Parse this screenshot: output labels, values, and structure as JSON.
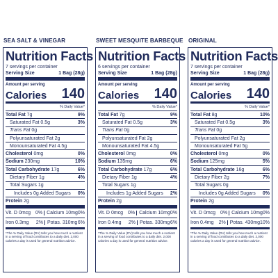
{
  "labels": [
    {
      "flavor": "SEA SALT & VINEGAR",
      "title": "Nutrition Facts",
      "servings": "7 servings per container",
      "serving_size_label": "Serving Size",
      "serving_size": "1 Bag (28g)",
      "amount_per_serving": "Amount per serving",
      "calories_label": "Calories",
      "calories": "140",
      "dv_header": "% Daily Value*",
      "rows": [
        {
          "name": "Total Fat",
          "amount": "7g",
          "dv": "9%"
        },
        {
          "name": "Saturated Fat",
          "amount": "0.5g",
          "dv": "3%"
        },
        {
          "name": "Trans Fat",
          "amount": "0g"
        },
        {
          "name": "Polyunsaturated Fat",
          "amount": "2g"
        },
        {
          "name": "Monounsaturated Fat",
          "amount": "4.5g"
        },
        {
          "name": "Cholesterol",
          "amount": "0mg",
          "dv": "0%"
        },
        {
          "name": "Sodium",
          "amount": "230mg",
          "dv": "10%"
        },
        {
          "name": "Total Carbohydrate",
          "amount": "17g",
          "dv": "6%"
        },
        {
          "name": "Dietary Fiber",
          "amount": "1g",
          "dv": "4%"
        },
        {
          "name": "Total Sugars",
          "amount": "1g"
        },
        {
          "name": "Includes 0g Added Sugars",
          "dv": "0%"
        },
        {
          "name": "Protein",
          "amount": "2g"
        }
      ],
      "vitamins": [
        [
          {
            "name": "Vit. D",
            "amount": "0mcg",
            "dv": "0%"
          },
          {
            "name": "Calcium",
            "amount": "10mg",
            "dv": "0%"
          }
        ],
        [
          {
            "name": "Iron",
            "amount": "0.3mg",
            "dv": "2%"
          },
          {
            "name": "Potas.",
            "amount": "310mg",
            "dv": "6%"
          }
        ]
      ],
      "footnote": "*The % Daily Value (DV) tells you how much a nutrient in a serving of food contributes to a daily diet. 2,000 calories a day is used for general nutrition advice."
    },
    {
      "flavor": "SWEET MESQUITE BARBEQUE",
      "title": "Nutrition Facts",
      "servings": "6 servings per container",
      "serving_size_label": "Serving Size",
      "serving_size": "1 Bag (28g)",
      "amount_per_serving": "Amount per serving",
      "calories_label": "Calories",
      "calories": "140",
      "dv_header": "% Daily Value*",
      "rows": [
        {
          "name": "Total Fat",
          "amount": "7g",
          "dv": "9%"
        },
        {
          "name": "Saturated Fat",
          "amount": "0.5g",
          "dv": "3%"
        },
        {
          "name": "Trans Fat",
          "amount": "0g"
        },
        {
          "name": "Polyunsaturated Fat",
          "amount": "2g"
        },
        {
          "name": "Monounsaturated Fat",
          "amount": "4.5g"
        },
        {
          "name": "Cholesterol",
          "amount": "0mg",
          "dv": "0%"
        },
        {
          "name": "Sodium",
          "amount": "135mg",
          "dv": "6%"
        },
        {
          "name": "Total Carbohydrate",
          "amount": "17g",
          "dv": "6%"
        },
        {
          "name": "Dietary Fiber",
          "amount": "1g",
          "dv": "4%"
        },
        {
          "name": "Total Sugars",
          "amount": "1g"
        },
        {
          "name": "Includes 1g Added Sugars",
          "dv": "2%"
        },
        {
          "name": "Protein",
          "amount": "2g"
        }
      ],
      "vitamins": [
        [
          {
            "name": "Vit. D",
            "amount": "0mcg",
            "dv": "0%"
          },
          {
            "name": "Calcium",
            "amount": "10mg",
            "dv": "0%"
          }
        ],
        [
          {
            "name": "Iron",
            "amount": "0.4mg",
            "dv": "2%"
          },
          {
            "name": "Potas.",
            "amount": "330mg",
            "dv": "6%"
          }
        ]
      ],
      "footnote": "*The % Daily Value (DV) tells you how much a nutrient in a serving of food contributes to a daily diet. 2,000 calories a day is used for general nutrition advice."
    },
    {
      "flavor": "ORIGINAL",
      "title": "Nutrition Facts",
      "servings": "7 servings per container",
      "serving_size_label": "Serving Size",
      "serving_size": "1 Bag (28g)",
      "amount_per_serving": "Amount per serving",
      "calories_label": "Calories",
      "calories": "140",
      "dv_header": "% Daily Value*",
      "rows": [
        {
          "name": "Total Fat",
          "amount": "8g",
          "dv": "10%"
        },
        {
          "name": "Saturated Fat",
          "amount": "0.5g",
          "dv": "3%"
        },
        {
          "name": "Trans Fat",
          "amount": "0g"
        },
        {
          "name": "Polyunsaturated Fat",
          "amount": "2g"
        },
        {
          "name": "Monounsaturated Fat",
          "amount": "5g"
        },
        {
          "name": "Cholesterol",
          "amount": "0mg",
          "dv": "0%"
        },
        {
          "name": "Sodium",
          "amount": "125mg",
          "dv": "5%"
        },
        {
          "name": "Total Carbohydrate",
          "amount": "16g",
          "dv": "6%"
        },
        {
          "name": "Dietary Fiber",
          "amount": "2g",
          "dv": "7%"
        },
        {
          "name": "Total Sugars",
          "amount": "0g"
        },
        {
          "name": "Includes 0g Added Sugars",
          "dv": "0%"
        },
        {
          "name": "Protein",
          "amount": "2g"
        }
      ],
      "vitamins": [
        [
          {
            "name": "Vit. D",
            "amount": "0mcg",
            "dv": "0%"
          },
          {
            "name": "Calcium",
            "amount": "10mg",
            "dv": "0%"
          }
        ],
        [
          {
            "name": "Iron",
            "amount": "0.4mg",
            "dv": "2%"
          },
          {
            "name": "Potas.",
            "amount": "430mg",
            "dv": "10%"
          }
        ]
      ],
      "footnote": "*The % Daily Value (DV) tells you how much a nutrient in a serving of food contributes to a daily diet. 2,000 calories a day is used for general nutrition advice."
    }
  ]
}
